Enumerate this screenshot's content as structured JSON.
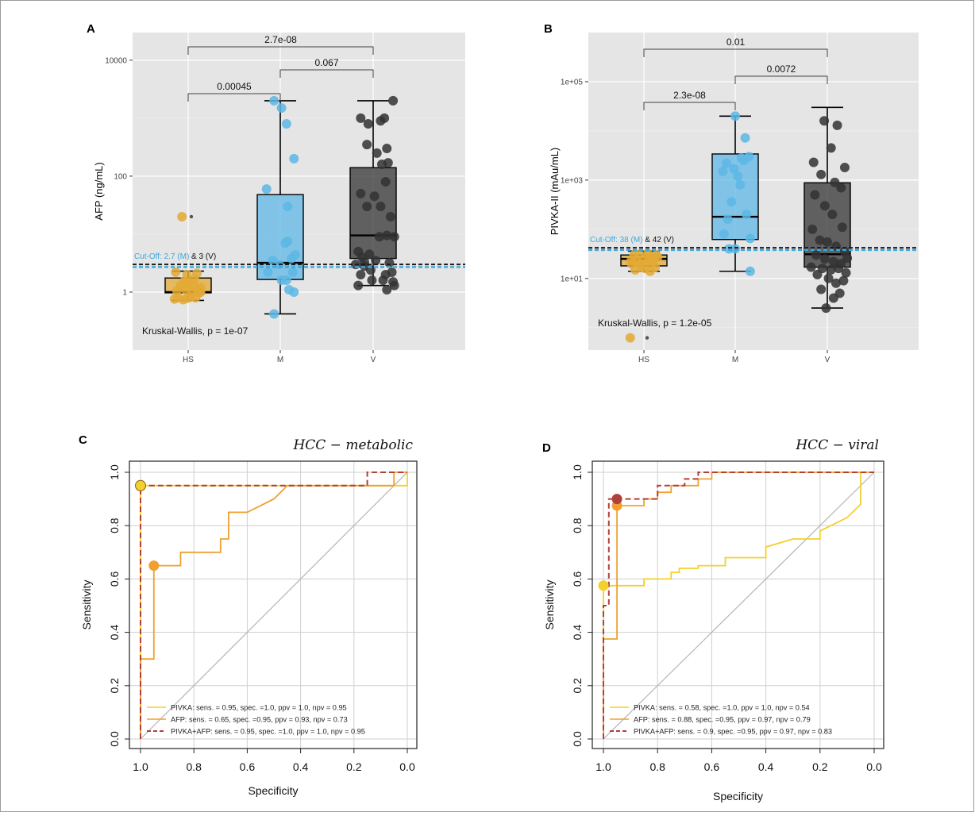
{
  "colors": {
    "hs": "#E3A935",
    "m": "#5DB7E5",
    "v": "#333333",
    "pivka": "#F3D02E",
    "afp": "#F0A030",
    "combo": "#B0403A",
    "cutoff_m": "#3BA8DF",
    "cutoff_v": "#1a1a1a",
    "ggbg": "#E5E5E5"
  },
  "chart_data": [
    {
      "panel": "A",
      "type": "box",
      "ylabel": "AFP (ng/mL)",
      "yscale": "log10",
      "ylim": [
        0.1,
        30000
      ],
      "yticks": [
        1,
        100,
        10000
      ],
      "ytick_labels": [
        "1",
        "100",
        "10000"
      ],
      "categories": [
        "HS",
        "M",
        "V"
      ],
      "boxes": [
        {
          "group": "HS",
          "whisker_low": 0.72,
          "q1": 0.97,
          "median": 1.0,
          "q3": 1.75,
          "whisker_high": 2.3,
          "color": "#E3A935"
        },
        {
          "group": "M",
          "whisker_low": 0.42,
          "q1": 1.65,
          "median": 3.2,
          "q3": 48,
          "whisker_high": 2000,
          "color": "#5DB7E5"
        },
        {
          "group": "V",
          "whisker_low": 1.3,
          "q1": 3.8,
          "median": 9.5,
          "q3": 140,
          "whisker_high": 2000,
          "color": "#333333"
        }
      ],
      "points": {
        "HS": [
          [
            -0.1,
            20
          ],
          [
            -0.22,
            0.76
          ],
          [
            -0.16,
            0.8
          ],
          [
            -0.08,
            0.74
          ],
          [
            -0.02,
            0.78
          ],
          [
            0.04,
            0.82
          ],
          [
            0.12,
            0.8
          ],
          [
            0.18,
            0.97
          ],
          [
            0.2,
            1.0
          ],
          [
            0.15,
            1.05
          ],
          [
            0.06,
            1.0
          ],
          [
            -0.04,
            1.1
          ],
          [
            -0.12,
            1.3
          ],
          [
            -0.18,
            1.05
          ],
          [
            0.0,
            1.45
          ],
          [
            0.08,
            1.3
          ],
          [
            -0.06,
            1.55
          ],
          [
            0.1,
            1.7
          ],
          [
            -0.2,
            2.2
          ],
          [
            0.14,
            2.1
          ],
          [
            -0.02,
            2.0
          ],
          [
            0.2,
            1.2
          ]
        ],
        "M": [
          [
            -0.22,
            60
          ],
          [
            -0.1,
            2000
          ],
          [
            0.02,
            1500
          ],
          [
            0.1,
            800
          ],
          [
            0.22,
            200
          ],
          [
            0.12,
            30
          ],
          [
            0.08,
            7
          ],
          [
            0.12,
            7.5
          ],
          [
            -0.12,
            3.5
          ],
          [
            -0.02,
            3.0
          ],
          [
            0.18,
            3.8
          ],
          [
            0.24,
            4.4
          ],
          [
            0.2,
            2.2
          ],
          [
            0.1,
            1.6
          ],
          [
            0.14,
            1.1
          ],
          [
            0.22,
            1.0
          ],
          [
            -0.2,
            2.2
          ],
          [
            0.02,
            1.6
          ],
          [
            -0.1,
            0.42
          ]
        ],
        "V": [
          [
            -0.2,
            1000
          ],
          [
            -0.08,
            800
          ],
          [
            0.12,
            900
          ],
          [
            0.18,
            1000
          ],
          [
            0.22,
            300
          ],
          [
            0.32,
            2000
          ],
          [
            -0.1,
            350
          ],
          [
            0.06,
            250
          ],
          [
            0.14,
            160
          ],
          [
            0.24,
            170
          ],
          [
            0.2,
            80
          ],
          [
            -0.2,
            50
          ],
          [
            -0.1,
            30
          ],
          [
            0.02,
            45
          ],
          [
            0.12,
            30
          ],
          [
            0.28,
            20
          ],
          [
            -0.24,
            5
          ],
          [
            -0.18,
            4
          ],
          [
            -0.06,
            4.5
          ],
          [
            0.1,
            9
          ],
          [
            0.22,
            9.5
          ],
          [
            0.34,
            9
          ],
          [
            -0.28,
            3
          ],
          [
            -0.14,
            3.3
          ],
          [
            0.04,
            3.5
          ],
          [
            0.26,
            3.2
          ],
          [
            -0.2,
            2.0
          ],
          [
            -0.04,
            2.4
          ],
          [
            0.2,
            2.0
          ],
          [
            0.3,
            2.2
          ],
          [
            -0.24,
            1.3
          ],
          [
            -0.02,
            1.6
          ],
          [
            0.16,
            1.6
          ],
          [
            0.34,
            1.3
          ],
          [
            0.22,
            1.1
          ],
          [
            0.32,
            1.5
          ],
          [
            -0.14,
            2.8
          ]
        ]
      },
      "cutoff_m": 2.7,
      "cutoff_v": 3,
      "cutoff_label": {
        "prefix": "Cut-Off: 2.7 (M)",
        "suffix": "& 3 (V)"
      },
      "comparisons": [
        {
          "from": "HS",
          "to": "M",
          "label": "0.00045"
        },
        {
          "from": "M",
          "to": "V",
          "label": "0.067"
        },
        {
          "from": "HS",
          "to": "V",
          "label": "2.7e-08"
        }
      ],
      "test_label": "Kruskal-Wallis, p = 1e-07"
    },
    {
      "panel": "B",
      "type": "box",
      "ylabel": "PIVKA-II (mAu/mL)",
      "yscale": "log10",
      "ylim": [
        0.35,
        1000000
      ],
      "yticks": [
        10,
        1000,
        100000
      ],
      "ytick_labels": [
        "1e+01",
        "1e+03",
        "1e+05"
      ],
      "categories": [
        "HS",
        "M",
        "V"
      ],
      "boxes": [
        {
          "group": "HS",
          "whisker_low": 14,
          "q1": 18,
          "median": 25,
          "q3": 30,
          "whisker_high": 36,
          "color": "#E3A935"
        },
        {
          "group": "M",
          "whisker_low": 14,
          "q1": 62,
          "median": 180,
          "q3": 3400,
          "whisker_high": 20000,
          "color": "#5DB7E5"
        },
        {
          "group": "V",
          "whisker_low": 2.5,
          "q1": 17,
          "median": 31,
          "q3": 880,
          "whisker_high": 30000,
          "color": "#333333"
        }
      ],
      "points": {
        "HS": [
          [
            -0.22,
            0.62
          ],
          [
            -0.2,
            24
          ],
          [
            -0.12,
            22
          ],
          [
            -0.06,
            20
          ],
          [
            0.0,
            25
          ],
          [
            0.08,
            26
          ],
          [
            0.14,
            28
          ],
          [
            0.2,
            30
          ],
          [
            -0.16,
            30
          ],
          [
            -0.08,
            31
          ],
          [
            0.06,
            32
          ],
          [
            0.12,
            20
          ],
          [
            0.18,
            17
          ],
          [
            -0.04,
            17
          ],
          [
            0.02,
            16
          ],
          [
            0.1,
            14
          ],
          [
            -0.14,
            15
          ],
          [
            0.16,
            24
          ],
          [
            0.22,
            27
          ],
          [
            -0.2,
            20
          ]
        ],
        "M": [
          [
            0.0,
            20000
          ],
          [
            -0.2,
            1500
          ],
          [
            0.04,
            1200
          ],
          [
            0.14,
            2500
          ],
          [
            -0.14,
            2200
          ],
          [
            0.1,
            2800
          ],
          [
            0.22,
            3000
          ],
          [
            -0.02,
            1700
          ],
          [
            0.08,
            800
          ],
          [
            -0.06,
            360
          ],
          [
            0.18,
            200
          ],
          [
            0.24,
            65
          ],
          [
            -0.1,
            40
          ],
          [
            0.0,
            40
          ],
          [
            0.24,
            14
          ],
          [
            -0.12,
            160
          ],
          [
            0.16,
            7200
          ],
          [
            -0.18,
            80
          ]
        ],
        "V": [
          [
            -0.22,
            2300
          ],
          [
            -0.05,
            16000
          ],
          [
            0.16,
            13000
          ],
          [
            0.06,
            4500
          ],
          [
            0.28,
            1800
          ],
          [
            -0.1,
            1300
          ],
          [
            0.12,
            900
          ],
          [
            0.22,
            700
          ],
          [
            -0.2,
            500
          ],
          [
            -0.04,
            300
          ],
          [
            0.08,
            200
          ],
          [
            0.24,
            110
          ],
          [
            -0.24,
            100
          ],
          [
            -0.12,
            60
          ],
          [
            0.0,
            55
          ],
          [
            0.14,
            45
          ],
          [
            0.28,
            35
          ],
          [
            -0.18,
            30
          ],
          [
            -0.04,
            25
          ],
          [
            0.1,
            22
          ],
          [
            0.22,
            20
          ],
          [
            -0.26,
            17
          ],
          [
            -0.08,
            16
          ],
          [
            0.06,
            15
          ],
          [
            0.18,
            16
          ],
          [
            0.3,
            13
          ],
          [
            -0.16,
            12
          ],
          [
            0.02,
            10
          ],
          [
            0.14,
            8
          ],
          [
            0.26,
            9
          ],
          [
            -0.1,
            6
          ],
          [
            0.1,
            4
          ],
          [
            0.2,
            5
          ],
          [
            -0.02,
            2.5
          ],
          [
            0.32,
            26
          ]
        ]
      },
      "cutoff_m": 38,
      "cutoff_v": 42,
      "cutoff_label": {
        "prefix": "Cut-Off: 38 (M)",
        "suffix": "& 42 (V)"
      },
      "comparisons": [
        {
          "from": "HS",
          "to": "M",
          "label": "2.3e-08"
        },
        {
          "from": "M",
          "to": "V",
          "label": "0.0072"
        },
        {
          "from": "HS",
          "to": "V",
          "label": "0.01"
        }
      ],
      "test_label": "Kruskal-Wallis, p = 1.2e-05"
    },
    {
      "panel": "C",
      "type": "line",
      "title": "HCC − metabolic",
      "xlabel": "Specificity",
      "ylabel": "Sensitivity",
      "xlim": [
        1.0,
        0.0
      ],
      "ylim": [
        0.0,
        1.0
      ],
      "xticks": [
        1.0,
        0.8,
        0.6,
        0.4,
        0.2,
        0.0
      ],
      "xtick_labels": [
        "1.0",
        "0.8",
        "0.6",
        "0.4",
        "0.2",
        "0.0"
      ],
      "yticks": [
        0.0,
        0.2,
        0.4,
        0.6,
        0.8,
        1.0
      ],
      "ytick_labels": [
        "0.0",
        "0.2",
        "0.4",
        "0.6",
        "0.8",
        "1.0"
      ],
      "series": [
        {
          "name": "PIVKA",
          "color": "#F3D02E",
          "dash": false,
          "x": [
            1.0,
            1.0,
            0.0,
            0.0
          ],
          "y": [
            0.0,
            0.95,
            0.95,
            1.0
          ],
          "marker": [
            1.0,
            0.95
          ]
        },
        {
          "name": "AFP",
          "color": "#F0A030",
          "dash": false,
          "x": [
            1.0,
            1.0,
            0.95,
            0.95,
            0.85,
            0.85,
            0.7,
            0.7,
            0.67,
            0.67,
            0.6,
            0.6,
            0.5,
            0.45,
            0.45,
            0.05,
            0.05,
            0.0
          ],
          "y": [
            0.0,
            0.3,
            0.3,
            0.65,
            0.65,
            0.7,
            0.7,
            0.75,
            0.75,
            0.85,
            0.85,
            0.85,
            0.9,
            0.95,
            0.95,
            0.95,
            1.0,
            1.0
          ],
          "marker": [
            0.95,
            0.65
          ]
        },
        {
          "name": "PIVKA+AFP",
          "color": "#B0403A",
          "dash": true,
          "x": [
            1.0,
            1.0,
            0.15,
            0.15,
            0.0
          ],
          "y": [
            0.0,
            0.95,
            0.95,
            1.0,
            1.0
          ],
          "marker": null
        }
      ],
      "legend": [
        "PIVKA: sens. = 0.95, spec. =1.0, ppv = 1.0, npv = 0.95",
        "AFP: sens. = 0.65, spec. =0.95, ppv = 0.93, npv = 0.73",
        "PIVKA+AFP: sens. = 0.95, spec. =1.0, ppv = 1.0, npv = 0.95"
      ],
      "legend_position": "bottom-left"
    },
    {
      "panel": "D",
      "type": "line",
      "title": "HCC − viral",
      "xlabel": "Specificity",
      "ylabel": "Sensitivity",
      "xlim": [
        1.0,
        0.0
      ],
      "ylim": [
        0.0,
        1.0
      ],
      "xticks": [
        1.0,
        0.8,
        0.6,
        0.4,
        0.2,
        0.0
      ],
      "xtick_labels": [
        "1.0",
        "0.8",
        "0.6",
        "0.4",
        "0.2",
        "0.0"
      ],
      "yticks": [
        0.0,
        0.2,
        0.4,
        0.6,
        0.8,
        1.0
      ],
      "ytick_labels": [
        "0.0",
        "0.2",
        "0.4",
        "0.6",
        "0.8",
        "1.0"
      ],
      "series": [
        {
          "name": "PIVKA",
          "color": "#F3D02E",
          "dash": false,
          "x": [
            1.0,
            1.0,
            0.85,
            0.85,
            0.75,
            0.75,
            0.72,
            0.72,
            0.65,
            0.65,
            0.55,
            0.55,
            0.4,
            0.4,
            0.3,
            0.2,
            0.2,
            0.1,
            0.05,
            0.05
          ],
          "y": [
            0.0,
            0.575,
            0.575,
            0.6,
            0.6,
            0.625,
            0.625,
            0.64,
            0.64,
            0.65,
            0.65,
            0.68,
            0.68,
            0.72,
            0.75,
            0.75,
            0.78,
            0.83,
            0.88,
            1.0
          ],
          "marker": [
            1.0,
            0.575
          ]
        },
        {
          "name": "AFP",
          "color": "#F0A030",
          "dash": false,
          "x": [
            1.0,
            1.0,
            0.95,
            0.95,
            0.85,
            0.85,
            0.8,
            0.8,
            0.75,
            0.75,
            0.65,
            0.65,
            0.6,
            0.6,
            0.0
          ],
          "y": [
            0.0,
            0.375,
            0.375,
            0.875,
            0.875,
            0.9,
            0.9,
            0.925,
            0.925,
            0.95,
            0.95,
            0.975,
            0.975,
            1.0,
            1.0
          ],
          "marker": [
            0.95,
            0.875
          ]
        },
        {
          "name": "PIVKA+AFP",
          "color": "#B0403A",
          "dash": true,
          "x": [
            1.0,
            1.0,
            0.98,
            0.98,
            0.95,
            0.95,
            0.8,
            0.8,
            0.7,
            0.7,
            0.65,
            0.65,
            0.0
          ],
          "y": [
            0.0,
            0.5,
            0.5,
            0.9,
            0.9,
            0.9,
            0.9,
            0.95,
            0.95,
            0.975,
            0.975,
            1.0,
            1.0
          ],
          "marker": [
            0.95,
            0.9
          ]
        }
      ],
      "legend": [
        "PIVKA: sens. = 0.58, spec. =1.0, ppv = 1.0, npv = 0.54",
        "AFP: sens. = 0.88, spec. =0.95, ppv = 0.97, npv = 0.79",
        "PIVKA+AFP: sens. = 0.9, spec. =0.95, ppv = 0.97, npv = 0.83"
      ],
      "legend_position": "bottom-left"
    }
  ]
}
